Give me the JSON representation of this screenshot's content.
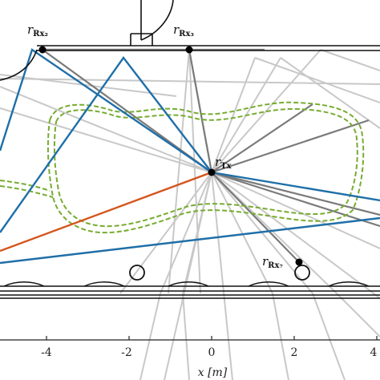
{
  "colors": {
    "rays_light": "#c8c8c8",
    "rays_dark": "#7a7a7a",
    "blue_paths": "#1f6fa8",
    "orange_path": "#d4561d",
    "green_trajectory": "#77ac30",
    "walls": "#111111"
  },
  "nodes": {
    "tx": {
      "label": "r",
      "sub": "Tx"
    },
    "rx2": {
      "label": "r",
      "sub": "Rx₂"
    },
    "rx3": {
      "label": "r",
      "sub": "Rx₃"
    },
    "rx7": {
      "label": "r",
      "sub": "Rx₇"
    }
  },
  "axis": {
    "x_label": "x [m]",
    "x_ticks": [
      "-4",
      "-2",
      "0",
      "2",
      "4"
    ]
  }
}
